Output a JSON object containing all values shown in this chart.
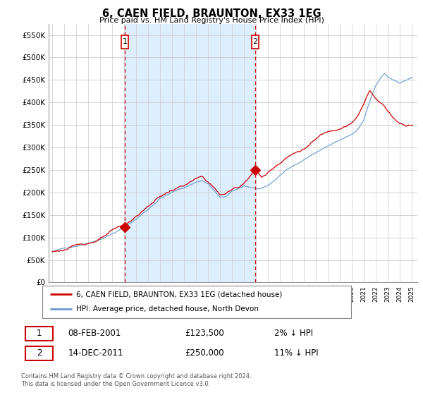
{
  "title": "6, CAEN FIELD, BRAUNTON, EX33 1EG",
  "subtitle": "Price paid vs. HM Land Registry's House Price Index (HPI)",
  "legend_label_red": "6, CAEN FIELD, BRAUNTON, EX33 1EG (detached house)",
  "legend_label_blue": "HPI: Average price, detached house, North Devon",
  "annotation1_date": "08-FEB-2001",
  "annotation1_price": "£123,500",
  "annotation1_hpi": "2% ↓ HPI",
  "annotation2_date": "14-DEC-2011",
  "annotation2_price": "£250,000",
  "annotation2_hpi": "11% ↓ HPI",
  "footer": "Contains HM Land Registry data © Crown copyright and database right 2024.\nThis data is licensed under the Open Government Licence v3.0.",
  "ylim_min": 0,
  "ylim_max": 575000,
  "yticks": [
    0,
    50000,
    100000,
    150000,
    200000,
    250000,
    300000,
    350000,
    400000,
    450000,
    500000,
    550000
  ],
  "ytick_labels": [
    "£0",
    "£50K",
    "£100K",
    "£150K",
    "£200K",
    "£250K",
    "£300K",
    "£350K",
    "£400K",
    "£450K",
    "£500K",
    "£550K"
  ],
  "hpi_color": "#6699cc",
  "price_color": "#cc0000",
  "vline_color": "#cc0000",
  "shade_color": "#ddeeff",
  "marker1_x": 2001.08,
  "marker1_y": 123500,
  "marker2_x": 2011.95,
  "marker2_y": 250000,
  "xlim_min": 1994.7,
  "xlim_max": 2025.5,
  "bg_color": "#ffffff",
  "grid_color": "#cccccc"
}
